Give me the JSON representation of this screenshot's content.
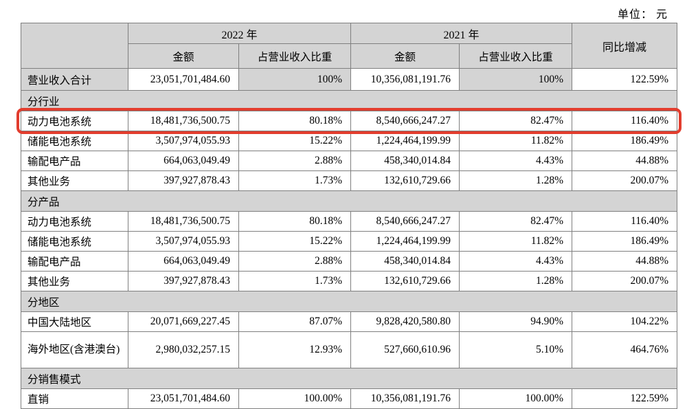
{
  "unit_label": "单位： 元",
  "colors": {
    "header_bg": "#d4d4d4",
    "border": "#7f7f7f",
    "highlight_red": "#e23d2e"
  },
  "table": {
    "header": {
      "year_2022": "2022 年",
      "year_2021": "2021 年",
      "amount_2022": "金额",
      "ratio_2022": "占营业收入比重",
      "amount_2021": "金额",
      "ratio_2021": "占营业收入比重",
      "yoy": "同比增减"
    },
    "total_row": {
      "label": "营业收入合计",
      "values": [
        "23,051,701,484.60",
        "100%",
        "10,356,081,191.76",
        "100%",
        "122.59%"
      ]
    },
    "sections": [
      {
        "title": "分行业",
        "rows": [
          {
            "label": "动力电池系统",
            "values": [
              "18,481,736,500.75",
              "80.18%",
              "8,540,666,247.27",
              "82.47%",
              "116.40%"
            ],
            "highlighted": true
          },
          {
            "label": "储能电池系统",
            "values": [
              "3,507,974,055.93",
              "15.22%",
              "1,224,464,199.99",
              "11.82%",
              "186.49%"
            ]
          },
          {
            "label": "输配电产品",
            "values": [
              "664,063,049.49",
              "2.88%",
              "458,340,014.84",
              "4.43%",
              "44.88%"
            ]
          },
          {
            "label": "其他业务",
            "values": [
              "397,927,878.43",
              "1.73%",
              "132,610,729.66",
              "1.28%",
              "200.07%"
            ]
          }
        ]
      },
      {
        "title": "分产品",
        "rows": [
          {
            "label": "动力电池系统",
            "values": [
              "18,481,736,500.75",
              "80.18%",
              "8,540,666,247.27",
              "82.47%",
              "116.40%"
            ]
          },
          {
            "label": "储能电池系统",
            "values": [
              "3,507,974,055.93",
              "15.22%",
              "1,224,464,199.99",
              "11.82%",
              "186.49%"
            ]
          },
          {
            "label": "输配电产品",
            "values": [
              "664,063,049.49",
              "2.88%",
              "458,340,014.84",
              "4.43%",
              "44.88%"
            ]
          },
          {
            "label": "其他业务",
            "values": [
              "397,927,878.43",
              "1.73%",
              "132,610,729.66",
              "1.28%",
              "200.07%"
            ]
          }
        ]
      },
      {
        "title": "分地区",
        "rows": [
          {
            "label": "中国大陆地区",
            "values": [
              "20,071,669,227.45",
              "87.07%",
              "9,828,420,580.80",
              "94.90%",
              "104.22%"
            ]
          },
          {
            "label": "海外地区(含港澳台)",
            "values": [
              "2,980,032,257.15",
              "12.93%",
              "527,660,610.96",
              "5.10%",
              "464.76%"
            ],
            "tall": true
          }
        ]
      },
      {
        "title": "分销售模式",
        "rows": [
          {
            "label": "直销",
            "values": [
              "23,051,701,484.60",
              "100.00%",
              "10,356,081,191.76",
              "100.00%",
              "122.59%"
            ]
          }
        ]
      }
    ]
  }
}
